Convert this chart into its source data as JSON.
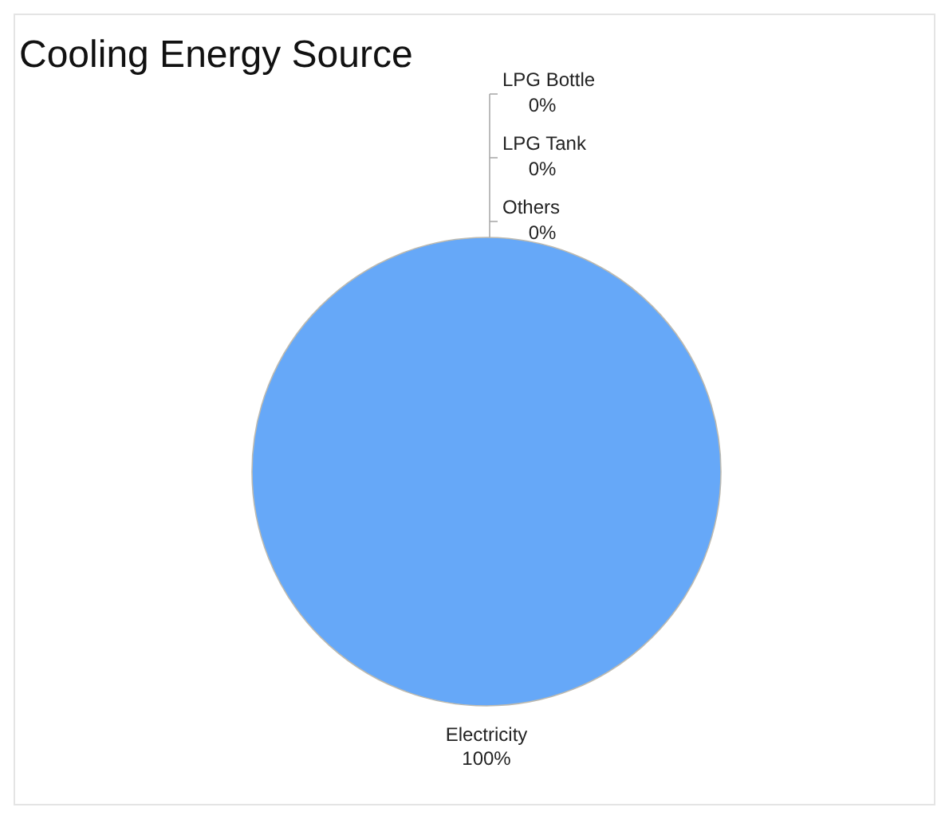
{
  "chart_data": {
    "type": "pie",
    "title": "Cooling Energy Source",
    "categories": [
      "Electricity",
      "Others",
      "LPG Tank",
      "LPG Bottle"
    ],
    "values": [
      100,
      0,
      0,
      0
    ],
    "colors": [
      "#66a8f8",
      "#e8a050",
      "#8cc060",
      "#c070c0"
    ],
    "value_labels": [
      "100%",
      "0%",
      "0%",
      "0%"
    ]
  }
}
